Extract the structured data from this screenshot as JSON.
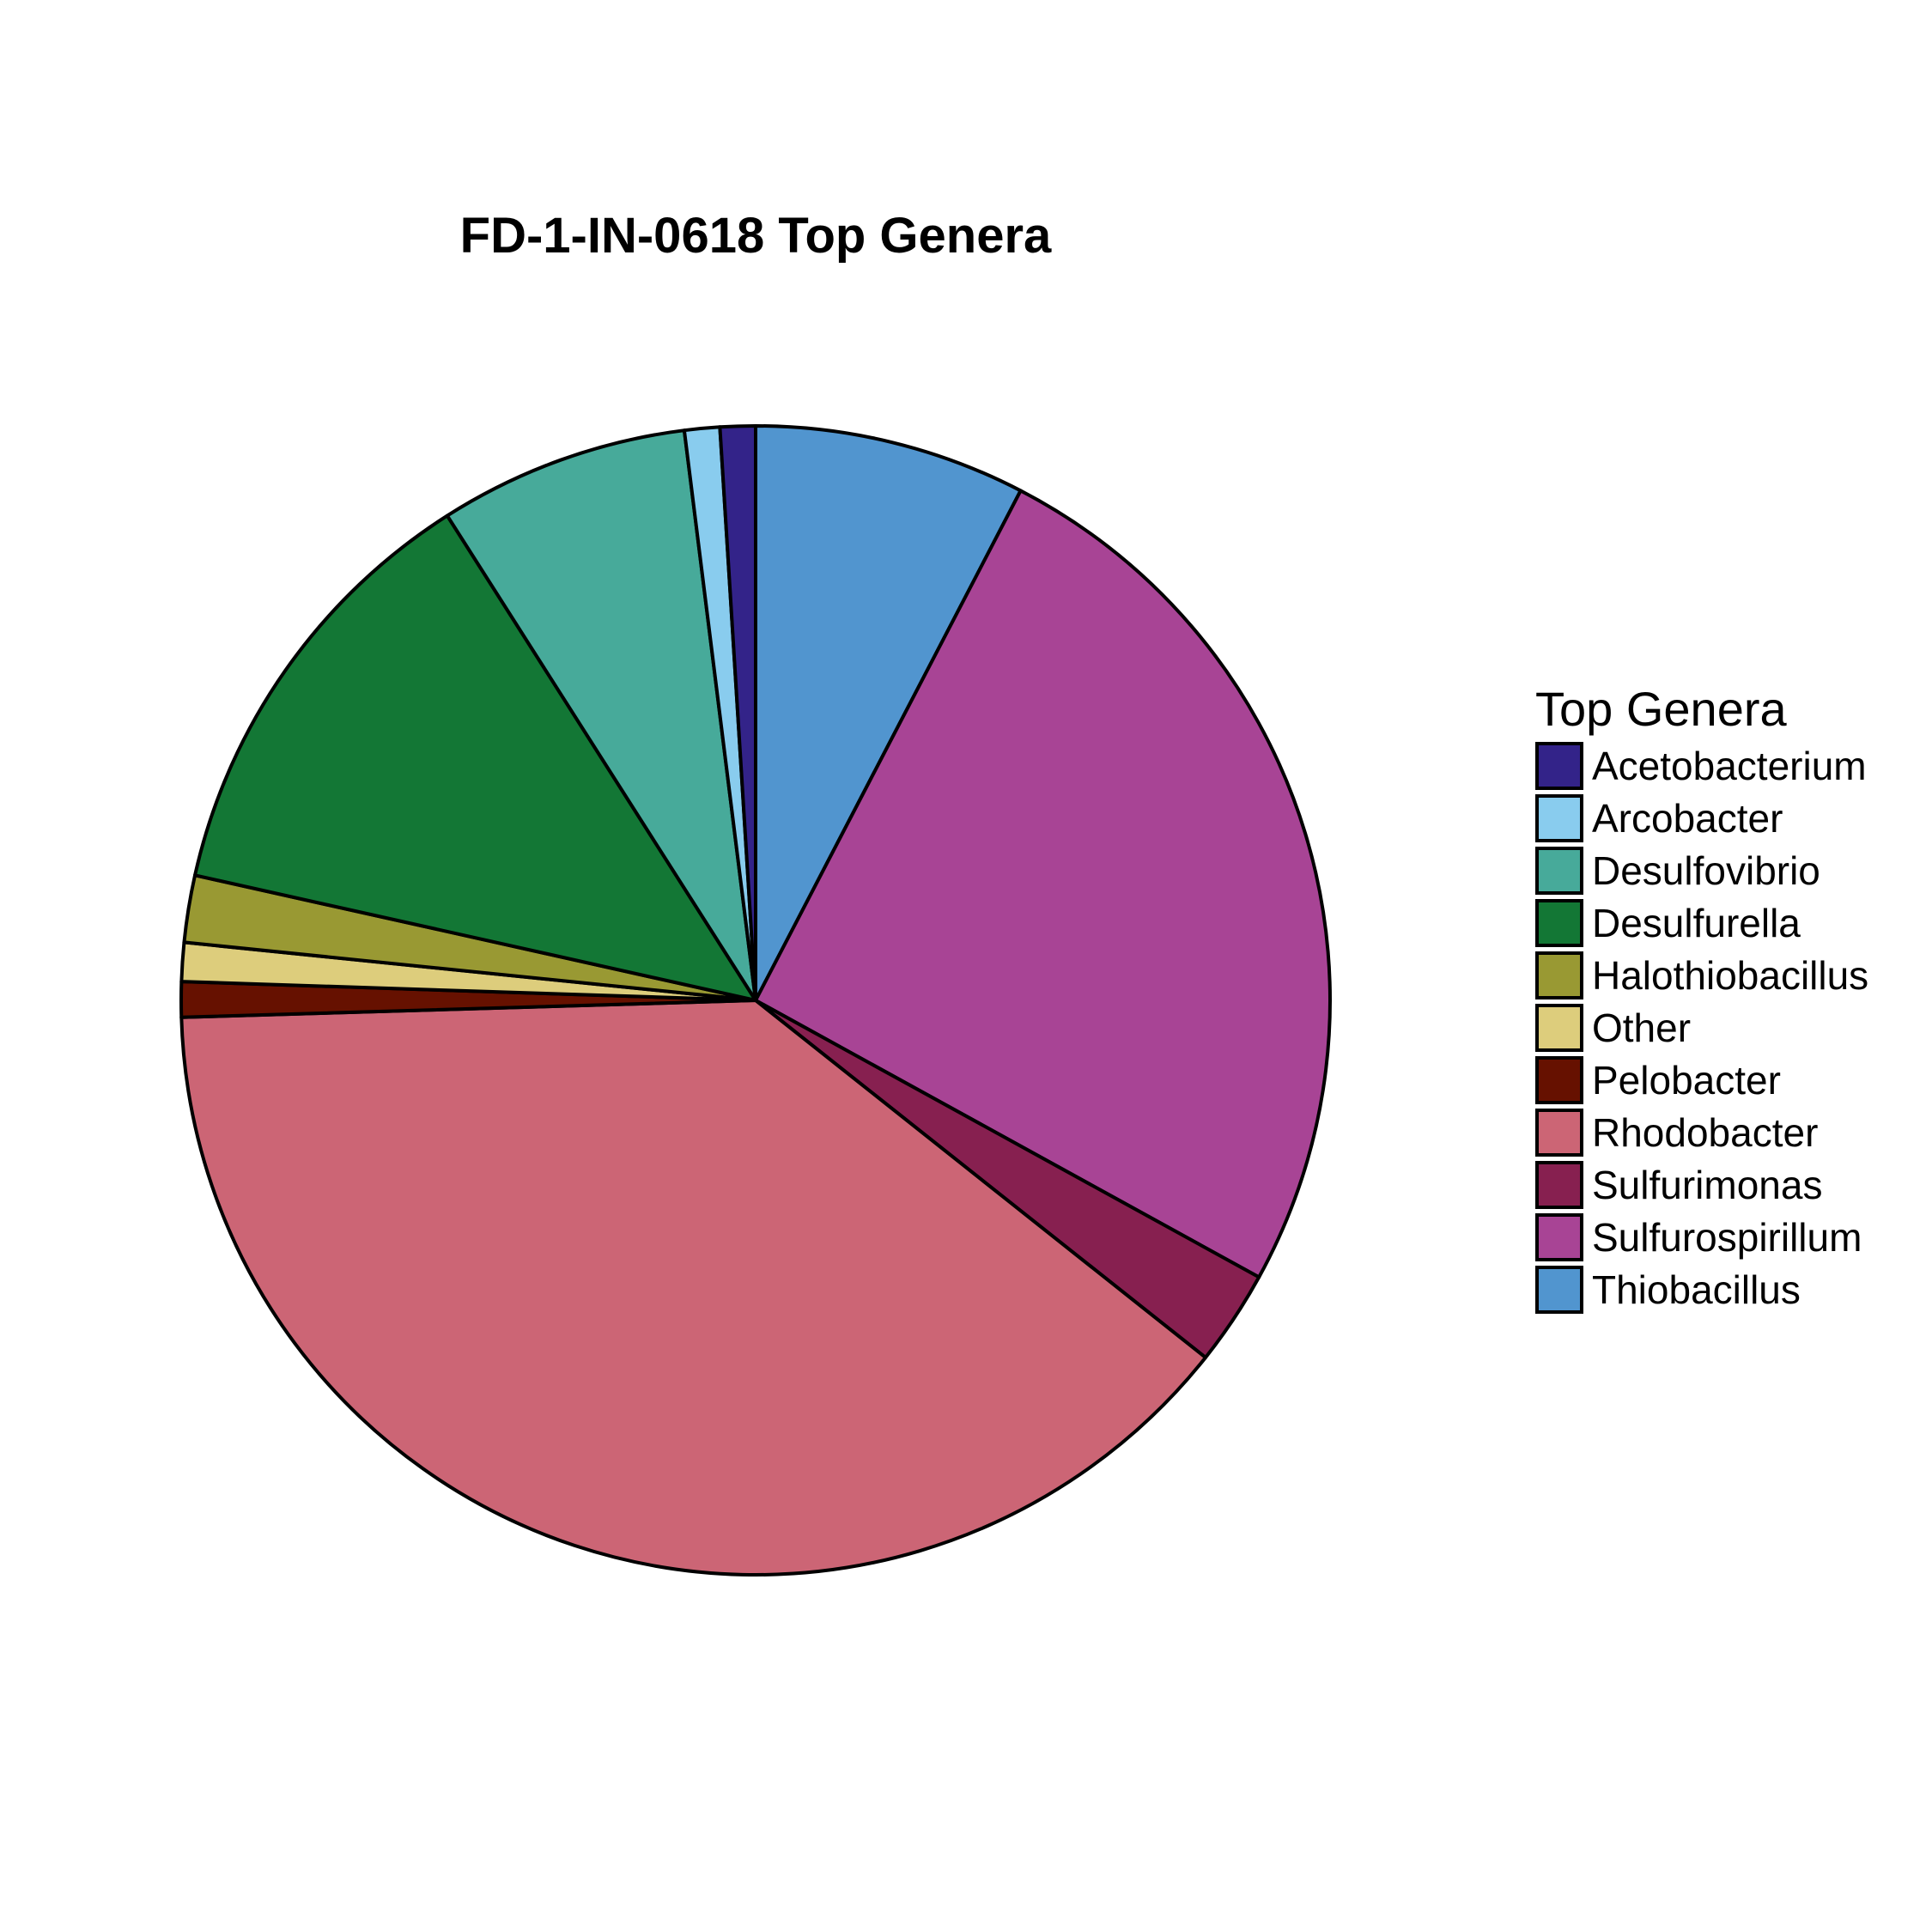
{
  "chart_data": {
    "type": "pie",
    "title": "FD-1-IN-0618 Top Genera",
    "legend_title": "Top Genera",
    "legend_position": "right",
    "direction": "clockwise-from-top",
    "slices": [
      {
        "label": "Thiobacillus",
        "value": 7.7,
        "color": "#5195CF"
      },
      {
        "label": "Sulfurospirillum",
        "value": 25.6,
        "color": "#A84495"
      },
      {
        "label": "Sulfurimonas",
        "value": 2.7,
        "color": "#872050"
      },
      {
        "label": "Rhodobacter",
        "value": 39.2,
        "color": "#CC6575"
      },
      {
        "label": "Pelobacter",
        "value": 1.0,
        "color": "#661100"
      },
      {
        "label": "Other",
        "value": 1.1,
        "color": "#DDCD7C"
      },
      {
        "label": "Halothiobacillus",
        "value": 1.9,
        "color": "#999933"
      },
      {
        "label": "Desulfurella",
        "value": 12.6,
        "color": "#137735"
      },
      {
        "label": "Desulfovibrio",
        "value": 7.1,
        "color": "#47AA9A"
      },
      {
        "label": "Arcobacter",
        "value": 1.0,
        "color": "#89CCEE"
      },
      {
        "label": "Acetobacterium",
        "value": 1.0,
        "color": "#332389"
      }
    ],
    "legend_order": [
      "Acetobacterium",
      "Arcobacter",
      "Desulfovibrio",
      "Desulfurella",
      "Halothiobacillus",
      "Other",
      "Pelobacter",
      "Rhodobacter",
      "Sulfurimonas",
      "Sulfurospirillum",
      "Thiobacillus"
    ]
  }
}
